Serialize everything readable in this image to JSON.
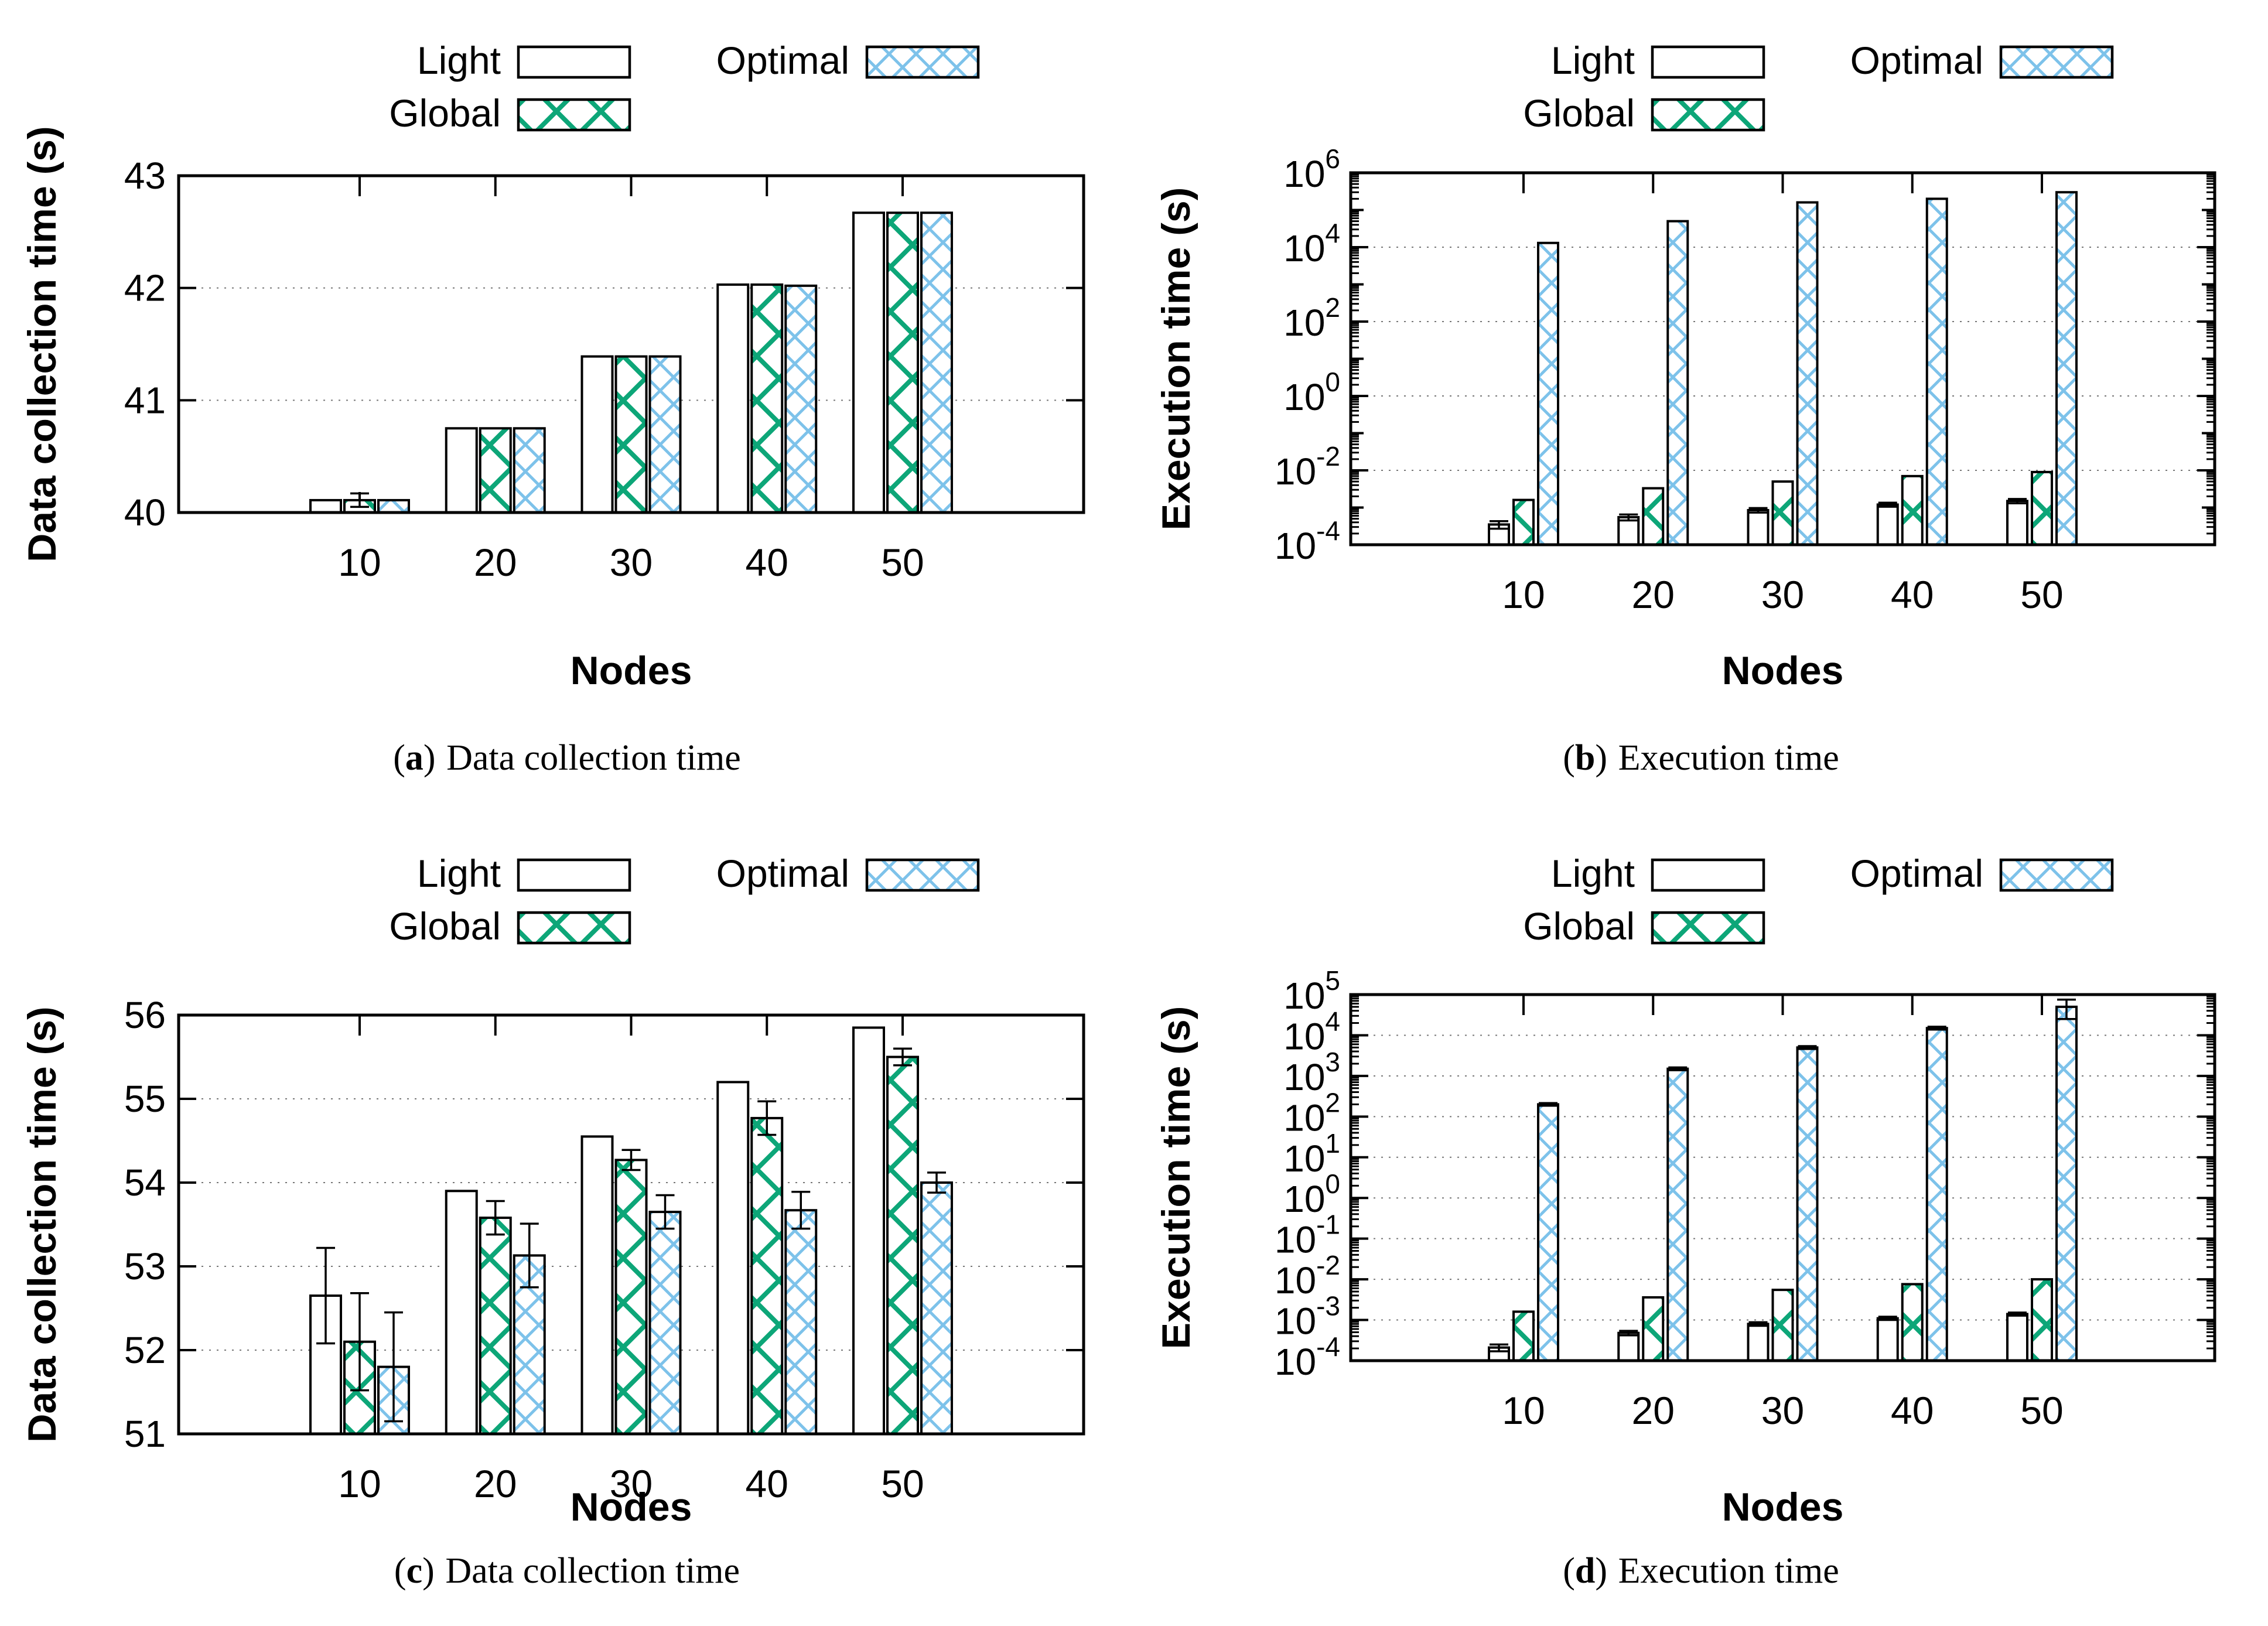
{
  "page": {
    "background": "#ffffff"
  },
  "colors": {
    "bar_border": "#000000",
    "light_fill": "#ffffff",
    "global_hatch": "#0DA678",
    "optimal_hatch": "#7DC2EA",
    "grid": "#777777",
    "axis": "#000000"
  },
  "legend": {
    "items": [
      {
        "label": "Light",
        "series": "light"
      },
      {
        "label": "Global",
        "series": "global"
      },
      {
        "label": "Optimal",
        "series": "optimal"
      }
    ],
    "position": "top"
  },
  "chart_data": [
    {
      "id": "a",
      "type": "bar",
      "scale": "linear",
      "title": "",
      "xlabel": "Nodes",
      "ylabel": "Data collection time (s)",
      "categories": [
        10,
        20,
        30,
        40,
        50
      ],
      "ylim": [
        40,
        43
      ],
      "yticks": [
        40,
        41,
        42,
        43
      ],
      "grid": true,
      "legend_position": "top",
      "series": [
        {
          "name": "Light",
          "values": [
            40.11,
            40.75,
            41.39,
            42.03,
            42.67
          ],
          "err": [
            0,
            0,
            0,
            0,
            0
          ]
        },
        {
          "name": "Global",
          "values": [
            40.11,
            40.75,
            41.39,
            42.03,
            42.67
          ],
          "err": [
            0.06,
            0,
            0,
            0,
            0
          ]
        },
        {
          "name": "Optimal",
          "values": [
            40.11,
            40.75,
            41.39,
            42.02,
            42.67
          ],
          "err": [
            0,
            0,
            0,
            0,
            0
          ]
        }
      ],
      "caption": {
        "open": "(",
        "letter": "a",
        "close": ")",
        "text": "Data collection time"
      }
    },
    {
      "id": "b",
      "type": "bar",
      "scale": "log",
      "title": "",
      "xlabel": "Nodes",
      "ylabel": "Execution time (s)",
      "categories": [
        10,
        20,
        30,
        40,
        50
      ],
      "ylim": [
        0.0001,
        1000000
      ],
      "ytick_exponents": {
        "min": -4,
        "max": 6,
        "label_step": 2
      },
      "grid": true,
      "legend_position": "top",
      "series": [
        {
          "name": "Light",
          "values": [
            0.00035,
            0.00055,
            0.00085,
            0.0012,
            0.0015
          ],
          "err": [
            8e-05,
            0.0001,
            0.00012,
            0.00015,
            0.0002
          ]
        },
        {
          "name": "Global",
          "values": [
            0.0016,
            0.0033,
            0.005,
            0.007,
            0.009
          ],
          "err": [
            0,
            0,
            0,
            0,
            0
          ]
        },
        {
          "name": "Optimal",
          "values": [
            13000,
            50000,
            160000,
            200000,
            300000
          ],
          "err": [
            0,
            0,
            0,
            0,
            0
          ]
        }
      ],
      "caption": {
        "open": "(",
        "letter": "b",
        "close": ")",
        "text": "Execution time"
      }
    },
    {
      "id": "c",
      "type": "bar",
      "scale": "linear",
      "title": "",
      "xlabel": "Nodes",
      "ylabel": "Data collection time (s)",
      "categories": [
        10,
        20,
        30,
        40,
        50
      ],
      "ylim": [
        51,
        56
      ],
      "yticks": [
        51,
        52,
        53,
        54,
        55,
        56
      ],
      "grid": true,
      "legend_position": "top",
      "series": [
        {
          "name": "Light",
          "values": [
            52.65,
            53.9,
            54.55,
            55.2,
            55.85
          ],
          "err": [
            0.57,
            0,
            0,
            0,
            0
          ]
        },
        {
          "name": "Global",
          "values": [
            52.1,
            53.58,
            54.27,
            54.77,
            55.5
          ],
          "err": [
            0.58,
            0.2,
            0.12,
            0.2,
            0.1
          ]
        },
        {
          "name": "Optimal",
          "values": [
            51.8,
            53.13,
            53.65,
            53.67,
            54.0
          ],
          "err": [
            0.65,
            0.38,
            0.2,
            0.22,
            0.12
          ]
        }
      ],
      "caption": {
        "open": "(",
        "letter": "c",
        "close": ")",
        "text": "Data collection time"
      }
    },
    {
      "id": "d",
      "type": "bar",
      "scale": "log",
      "title": "",
      "xlabel": "Nodes",
      "ylabel": "Execution time (s)",
      "categories": [
        10,
        20,
        30,
        40,
        50
      ],
      "ylim": [
        0.0001,
        100000
      ],
      "ytick_exponents": {
        "min": -4,
        "max": 5,
        "label_step": 1
      },
      "grid": true,
      "legend_position": "top",
      "series": [
        {
          "name": "Light",
          "values": [
            0.00021,
            0.00048,
            0.0008,
            0.0011,
            0.0014
          ],
          "err": [
            4e-05,
            6e-05,
            8e-05,
            0.0001,
            0.00012
          ]
        },
        {
          "name": "Global",
          "values": [
            0.0016,
            0.0036,
            0.0055,
            0.0076,
            0.01
          ],
          "err": [
            0,
            0,
            0,
            0,
            0
          ]
        },
        {
          "name": "Optimal",
          "values": [
            200,
            1500,
            5000,
            15000,
            50000
          ],
          "err": [
            15,
            120,
            400,
            1200,
            25000
          ]
        }
      ],
      "caption": {
        "open": "(",
        "letter": "d",
        "close": ")",
        "text": "Execution time"
      }
    }
  ]
}
